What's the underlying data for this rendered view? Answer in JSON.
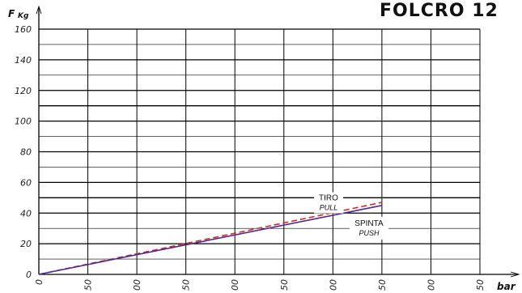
{
  "chart_data": {
    "type": "line",
    "title": "FOLCRO 12",
    "ylabel": "F",
    "ylabel_unit": "Kg",
    "xlabel": "bar",
    "ylim": [
      0,
      160
    ],
    "xlim": [
      0,
      450
    ],
    "y_ticks": [
      0,
      20,
      40,
      60,
      80,
      100,
      120,
      140,
      160
    ],
    "x_tick_labels": [
      "0",
      "50",
      "00",
      "50",
      "00",
      "50",
      "00",
      "50",
      "00",
      "50"
    ],
    "grid": true,
    "series": [
      {
        "name": "TIRO",
        "subname": "PULL",
        "color": "#d9291c",
        "style": "dashed",
        "x": [
          0,
          350
        ],
        "y": [
          0,
          47
        ]
      },
      {
        "name": "SPINTA",
        "subname": "PUSH",
        "color": "#4a2a9a",
        "style": "solid",
        "x": [
          0,
          350
        ],
        "y": [
          0,
          45
        ]
      }
    ]
  }
}
